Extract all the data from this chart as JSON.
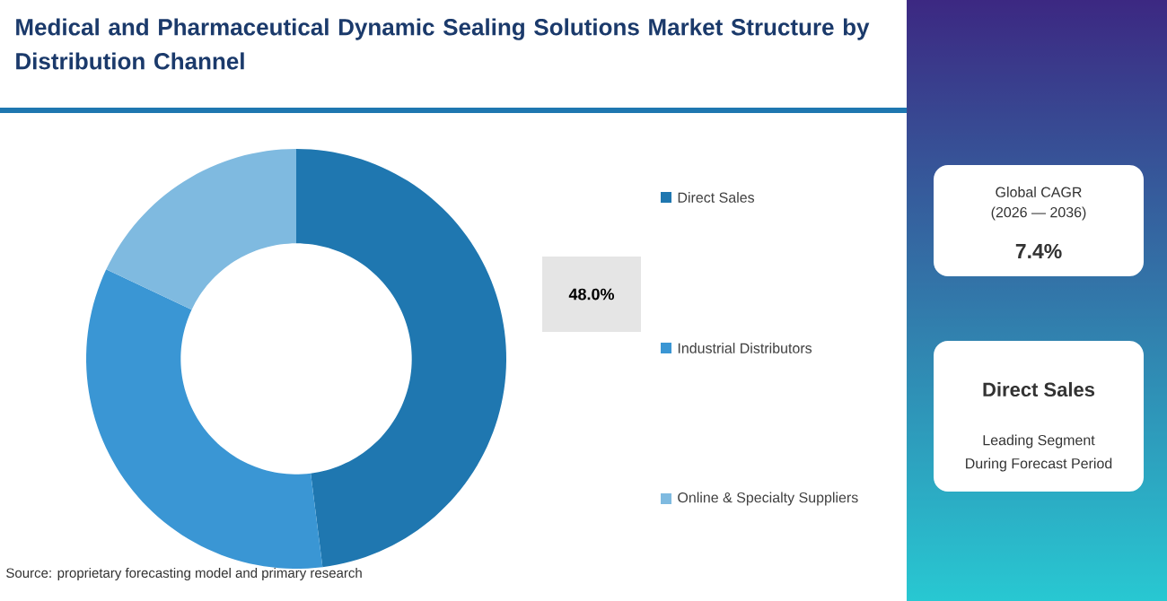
{
  "chart_data": {
    "type": "donut",
    "title": "Medical and Pharmaceutical Dynamic Sealing Solutions Market Structure by Distribution Channel",
    "categories": [
      "Direct Sales",
      "Industrial Distributors",
      "Online & Specialty Suppliers"
    ],
    "values": [
      48,
      34,
      18
    ],
    "colors": [
      "#1f77b0",
      "#3a96d4",
      "#7fbae0"
    ],
    "value_labels": [
      "48.0%",
      null,
      null
    ],
    "legend": "right",
    "annotations": [
      "Source: proprietary forecasting model and primary research",
      "Global CAGR",
      "(2026 — 2036)",
      "7.4%",
      "Direct Sales",
      "Leading Segment",
      "During Forecast Period"
    ]
  }
}
